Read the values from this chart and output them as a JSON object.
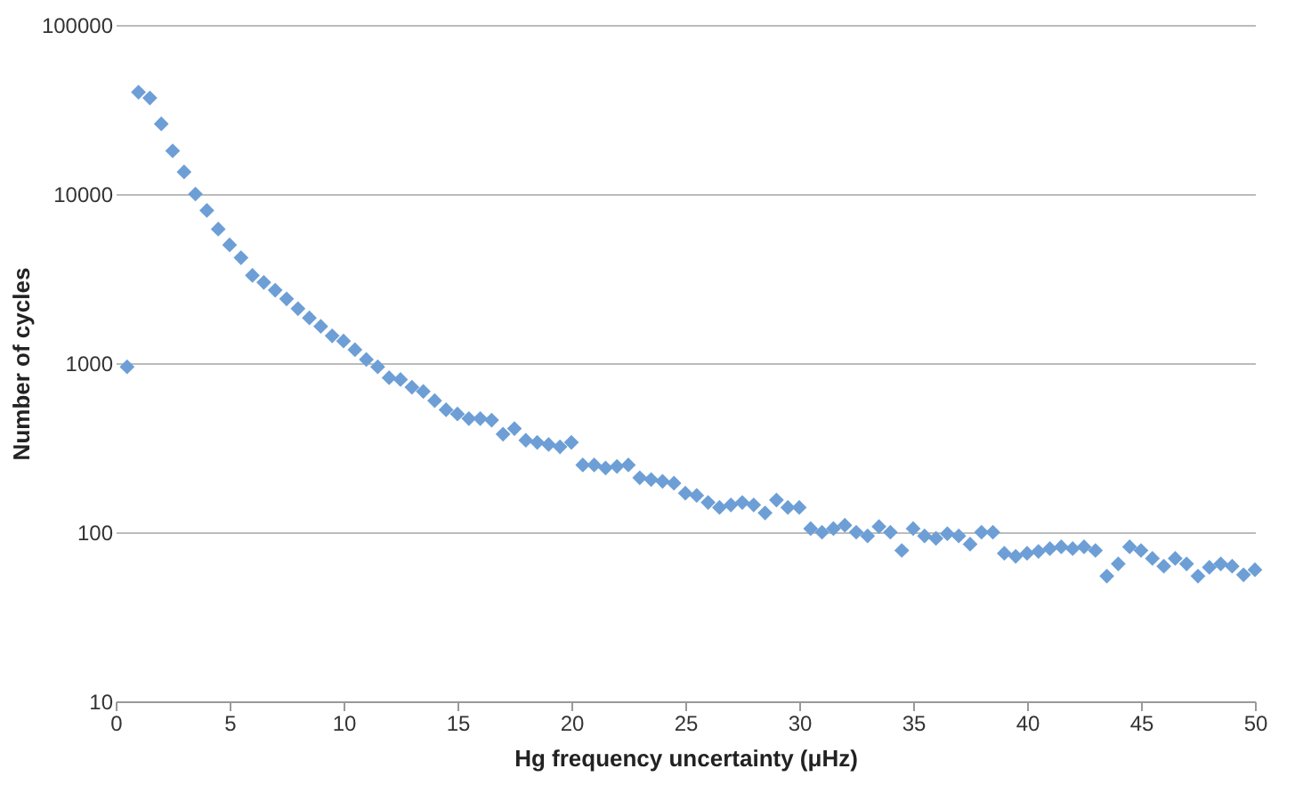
{
  "chart_data": {
    "type": "scatter",
    "xlabel": "Hg frequency uncertainty (μHz)",
    "ylabel": "Number of cycles",
    "log": "y",
    "grid": "y",
    "marker": "diamond",
    "xlim": [
      0,
      50
    ],
    "xticks": [
      0,
      5,
      10,
      15,
      20,
      25,
      30,
      35,
      40,
      45,
      50
    ],
    "ylim": [
      10,
      100000
    ],
    "yticks": [
      10,
      100,
      1000,
      10000,
      100000
    ],
    "x": [
      0.5,
      1,
      1.5,
      2,
      2.5,
      3,
      3.5,
      4,
      4.5,
      5,
      5.5,
      6,
      6.5,
      7,
      7.5,
      8,
      8.5,
      9,
      9.5,
      10,
      10.5,
      11,
      11.5,
      12,
      12.5,
      13,
      13.5,
      14,
      14.5,
      15,
      15.5,
      16,
      16.5,
      17,
      17.5,
      18,
      18.5,
      19,
      19.5,
      20,
      20.5,
      21,
      21.5,
      22,
      22.5,
      23,
      23.5,
      24,
      24.5,
      25,
      25.5,
      26,
      26.5,
      27,
      27.5,
      28,
      28.5,
      29,
      29.5,
      30,
      30.5,
      31,
      31.5,
      32,
      32.5,
      33,
      33.5,
      34,
      34.5,
      35,
      35.5,
      36,
      36.5,
      37,
      37.5,
      38,
      38.5,
      39,
      39.5,
      40,
      40.5,
      41,
      41.5,
      42,
      42.5,
      43,
      43.5,
      44,
      44.5,
      45,
      45.5,
      46,
      46.5,
      47,
      47.5,
      48,
      48.5,
      49,
      49.5,
      50
    ],
    "series": [
      {
        "color": "#6d9fd6",
        "values": [
          950,
          40000,
          37000,
          26000,
          18000,
          13500,
          10000,
          8000,
          6200,
          5000,
          4200,
          3300,
          3000,
          2700,
          2400,
          2100,
          1850,
          1650,
          1450,
          1350,
          1200,
          1050,
          950,
          820,
          800,
          720,
          680,
          600,
          530,
          500,
          470,
          470,
          460,
          380,
          410,
          350,
          340,
          330,
          320,
          340,
          250,
          250,
          240,
          245,
          250,
          210,
          205,
          200,
          195,
          170,
          165,
          150,
          140,
          145,
          150,
          145,
          130,
          155,
          140,
          140,
          105,
          100,
          105,
          110,
          100,
          95,
          108,
          100,
          78,
          105,
          95,
          92,
          98,
          95,
          85,
          100,
          100,
          75,
          72,
          75,
          77,
          80,
          82,
          80,
          82,
          78,
          55,
          65,
          82,
          78,
          70,
          63,
          70,
          65,
          55,
          62,
          65,
          63,
          56,
          60
        ]
      }
    ]
  }
}
